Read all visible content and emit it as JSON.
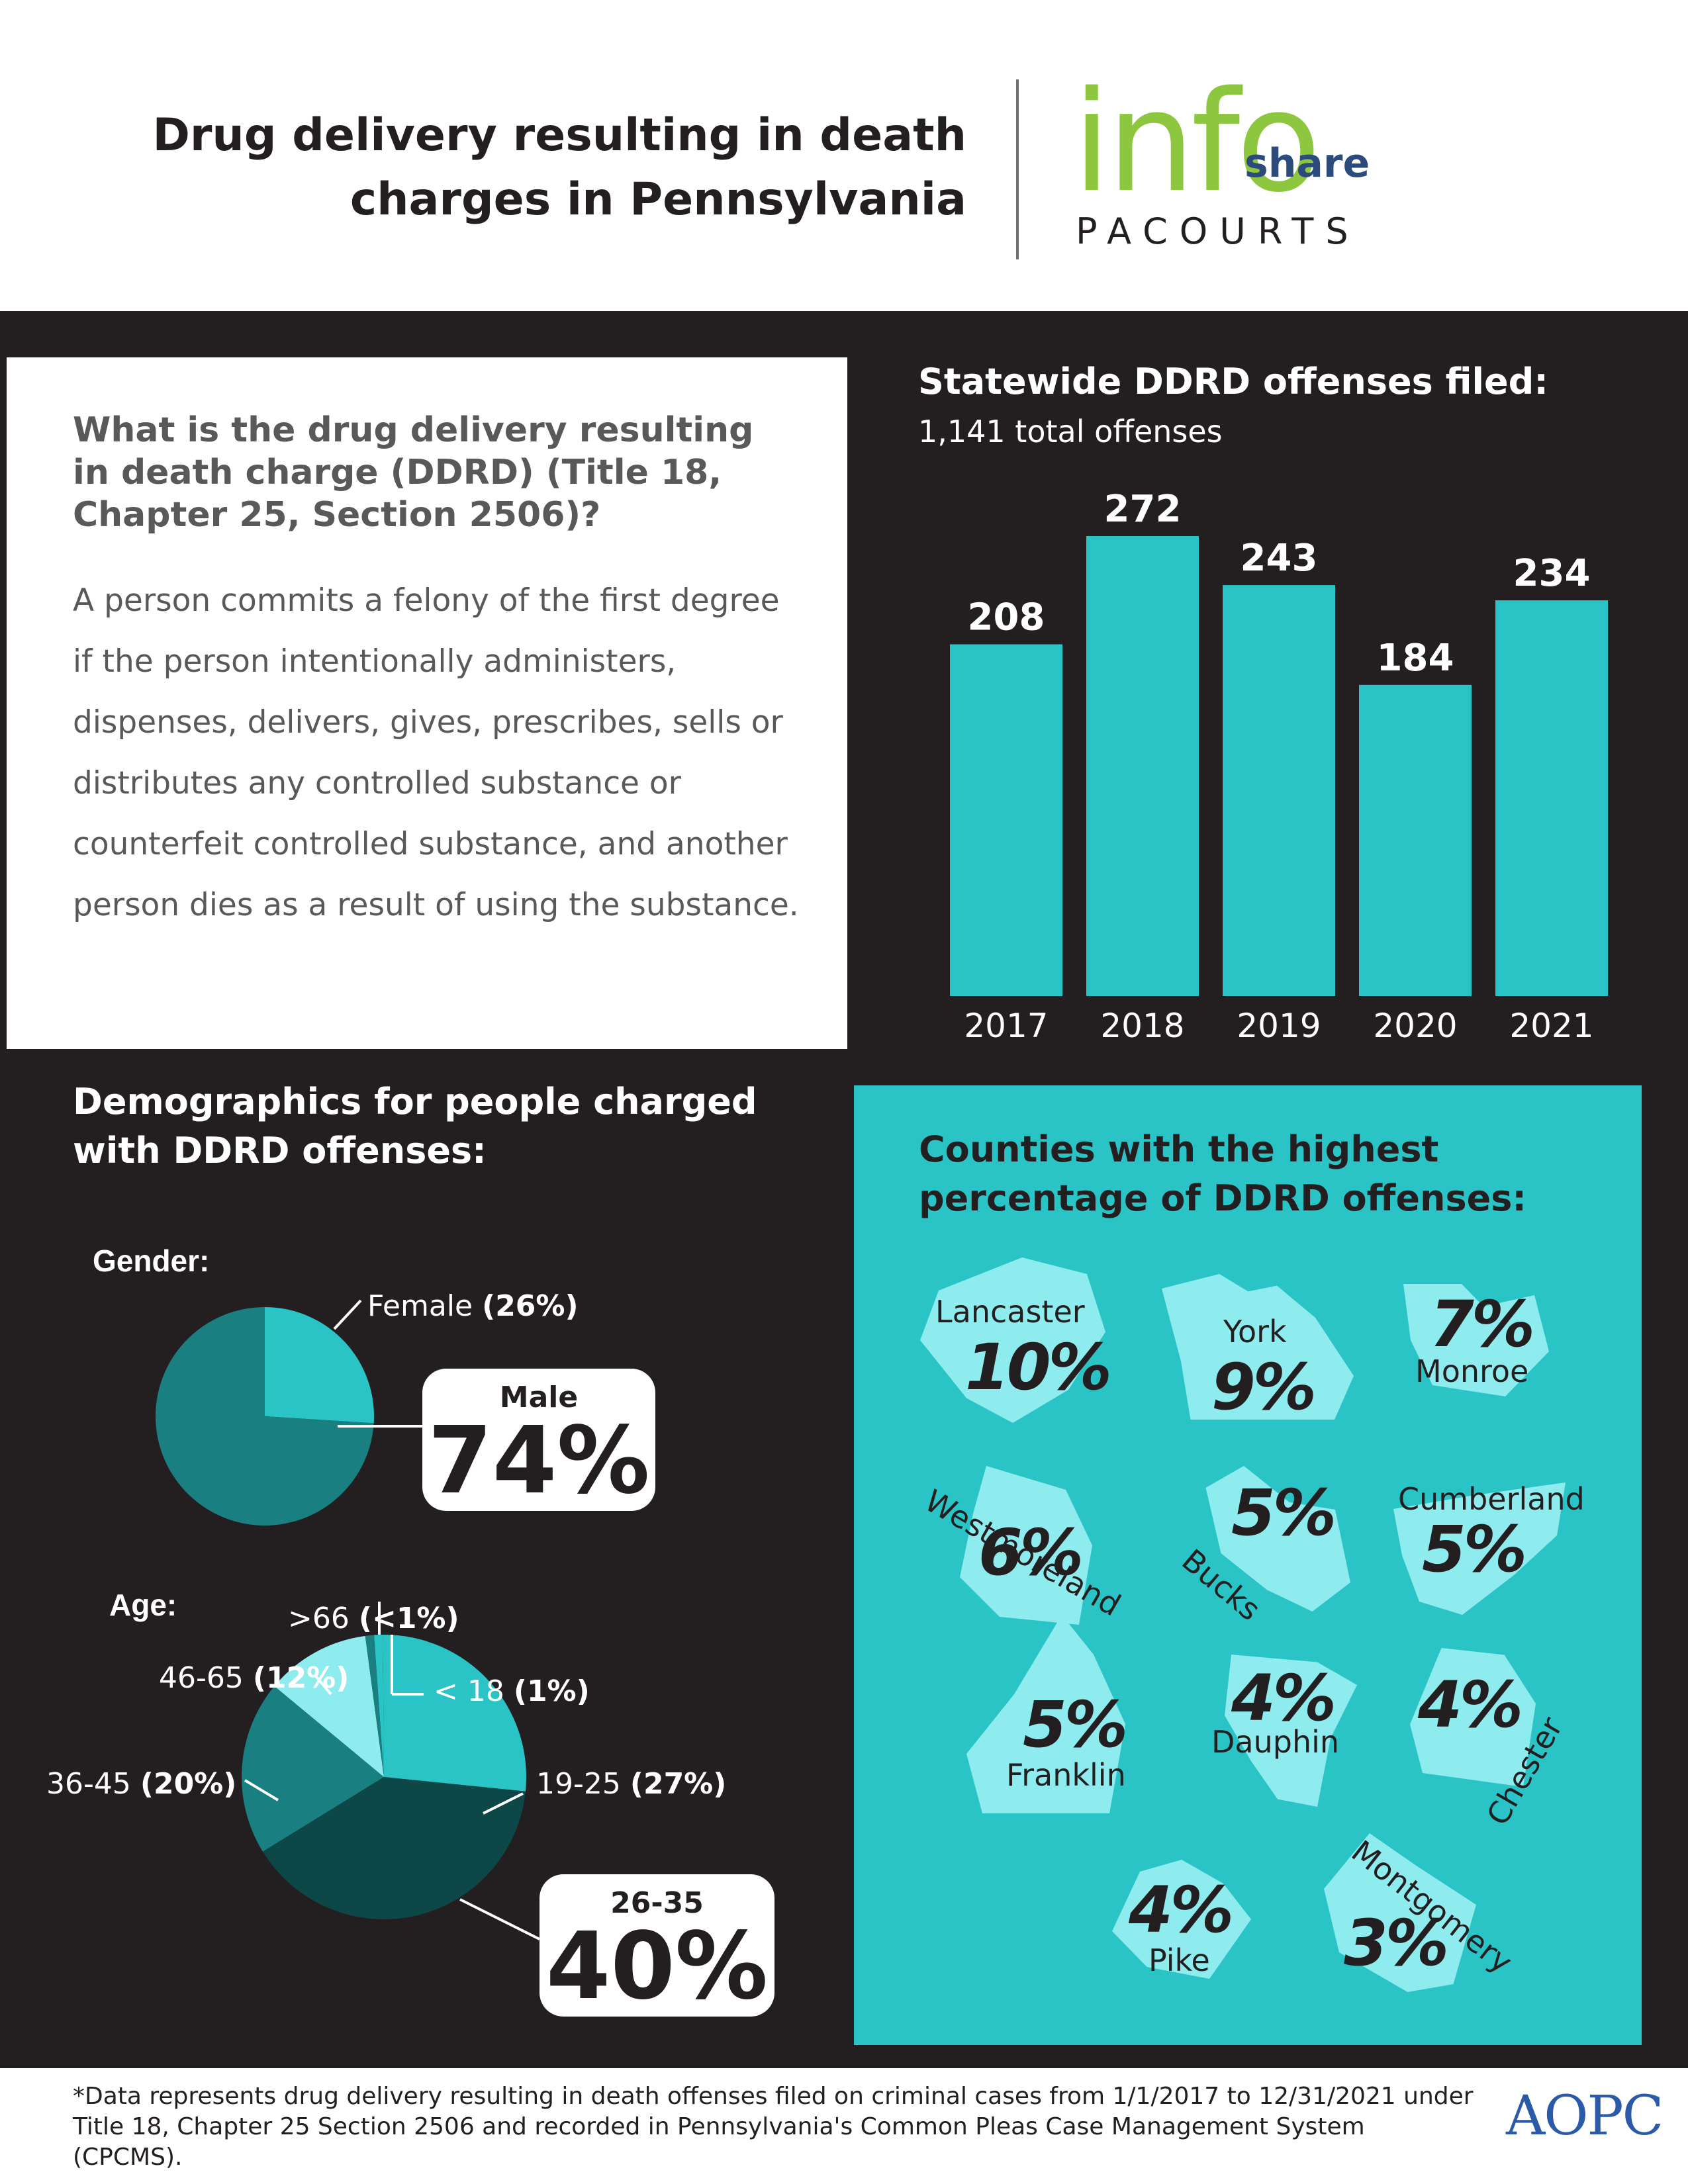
{
  "header": {
    "title_line1": "Drug delivery resulting in death",
    "title_line2": "charges in Pennsylvania",
    "logo_info": "info",
    "logo_share": "share",
    "logo_pacourts": "PACOURTS"
  },
  "definition": {
    "question": "What is the drug delivery resulting in death charge (DDRD) (Title 18, Chapter 25, Section 2506)?",
    "body": "A person commits a felony of the first degree if the person intentionally administers, dispenses, delivers, gives, prescribes, sells or distributes any controlled substance or counterfeit controlled substance, and another person dies as a result of using the substance."
  },
  "colors": {
    "dark_bg": "#231f20",
    "teal": "#2ac4c7",
    "teal_dark": "#1a7f80",
    "teal_darkest": "#0e4748",
    "teal_light": "#8eebee",
    "logo_green": "#8dc63f",
    "logo_blue": "#2a4b7c"
  },
  "demographics_title": "Demographics for people charged with DDRD offenses:",
  "gender_label": "Gender:",
  "age_label": "Age:",
  "counties_title": "Counties with the highest percentage of DDRD offenses:",
  "chart_data": [
    {
      "type": "bar",
      "title": "Statewide DDRD offenses filed:",
      "subtitle": "1,141 total offenses",
      "categories": [
        "2017",
        "2018",
        "2019",
        "2020",
        "2021"
      ],
      "values": [
        208,
        272,
        243,
        184,
        234
      ],
      "grid": false
    },
    {
      "type": "pie",
      "title": "Gender:",
      "slices": [
        {
          "name": "Female",
          "value": 26,
          "label": "(26%)",
          "color": "#2ac4c7"
        },
        {
          "name": "Male",
          "value": 74,
          "label": "74%",
          "color": "#1a7f80"
        }
      ]
    },
    {
      "type": "pie",
      "title": "Age:",
      "slices": [
        {
          "name": "< 18",
          "value": 1,
          "label": "(1%)",
          "color": "#2ac4c7"
        },
        {
          "name": "19-25",
          "value": 27,
          "label": "(27%)",
          "color": "#2ac4c7"
        },
        {
          "name": "26-35",
          "value": 40,
          "label": "40%",
          "color": "#0e4748"
        },
        {
          "name": "36-45",
          "value": 20,
          "label": "(20%)",
          "color": "#1a7f80"
        },
        {
          "name": "46-65",
          "value": 12,
          "label": "(12%)",
          "color": "#8eebee"
        },
        {
          "name": ">66",
          "value": 1,
          "label": "(<1%)",
          "color": "#1a7f80"
        }
      ]
    }
  ],
  "counties": [
    {
      "name": "Lancaster",
      "pct": "10%"
    },
    {
      "name": "York",
      "pct": "9%"
    },
    {
      "name": "Monroe",
      "pct": "7%"
    },
    {
      "name": "Westmoreland",
      "pct": "6%"
    },
    {
      "name": "Bucks",
      "pct": "5%"
    },
    {
      "name": "Cumberland",
      "pct": "5%"
    },
    {
      "name": "Franklin",
      "pct": "5%"
    },
    {
      "name": "Dauphin",
      "pct": "4%"
    },
    {
      "name": "Chester",
      "pct": "4%"
    },
    {
      "name": "Pike",
      "pct": "4%"
    },
    {
      "name": "Montgomery",
      "pct": "3%"
    }
  ],
  "footer": {
    "note": "*Data represents drug delivery resulting in death offenses filed on criminal cases from 1/1/2017 to 12/31/2021 under Title 18, Chapter 25 Section 2506 and recorded in Pennsylvania's Common Pleas Case Management System (CPCMS).",
    "aopc": "AOPC"
  }
}
